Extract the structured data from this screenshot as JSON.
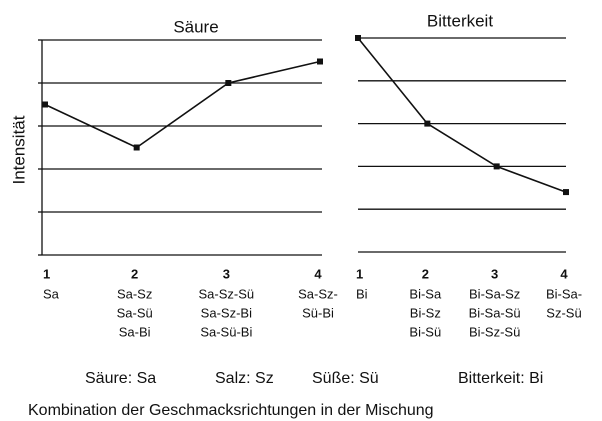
{
  "chart_data": [
    {
      "type": "line",
      "title": "Säure",
      "ylabel": "Intensität",
      "categories": [
        "1",
        "2",
        "3",
        "4"
      ],
      "category_details": [
        [
          "Sa"
        ],
        [
          "Sa-Sz",
          "Sa-Sü",
          "Sa-Bi"
        ],
        [
          "Sa-Sz-Sü",
          "Sa-Sz-Bi",
          "Sa-Sü-Bi"
        ],
        [
          "Sa-Sz-",
          "Sü-Bi"
        ]
      ],
      "values": [
        3.5,
        2.5,
        4.0,
        4.5
      ],
      "color": "#111111",
      "ylim": [
        0,
        5
      ],
      "yticks": [
        0,
        1,
        2,
        3,
        4,
        5
      ],
      "grid": true
    },
    {
      "type": "line",
      "title": "Bitterkeit",
      "categories": [
        "1",
        "2",
        "3",
        "4"
      ],
      "category_details": [
        [
          "Bi"
        ],
        [
          "Bi-Sa",
          "Bi-Sz",
          "Bi-Sü"
        ],
        [
          "Bi-Sa-Sz",
          "Bi-Sa-Sü",
          "Bi-Sz-Sü"
        ],
        [
          "Bi-Sa-",
          "Sz-Sü"
        ]
      ],
      "values": [
        5.0,
        3.0,
        2.0,
        1.4
      ],
      "color": "#111111",
      "ylim": [
        0,
        5
      ],
      "yticks": [
        0,
        1,
        2,
        3,
        4,
        5
      ],
      "grid": true
    }
  ],
  "legend": [
    "Säure: Sa",
    "Salz: Sz",
    "Süße: Sü",
    "Bitterkeit: Bi"
  ],
  "xlabel": "Kombination der Geschmacksrichtungen in der Mischung"
}
